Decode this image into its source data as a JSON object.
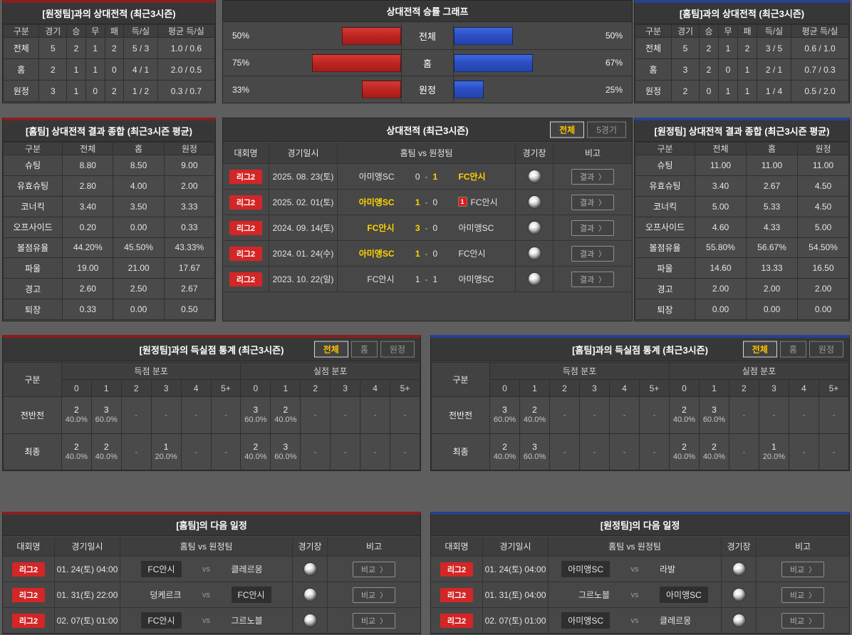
{
  "colors": {
    "accent_red": "#8a1e1e",
    "accent_blue": "#27418f",
    "bar_red": "#c02622",
    "bar_blue": "#2c50c4",
    "highlight_yellow": "#ffd400",
    "badge_red": "#d32626"
  },
  "away_h2h": {
    "title": "[원정팀]과의 상대전적 (최근3시즌)",
    "headers": [
      "구분",
      "경기",
      "승",
      "무",
      "패",
      "득/실",
      "평균 득/실"
    ],
    "rows": [
      [
        "전체",
        "5",
        "2",
        "1",
        "2",
        "5 / 3",
        "1.0 / 0.6"
      ],
      [
        "홈",
        "2",
        "1",
        "1",
        "0",
        "4 / 1",
        "2.0 / 0.5"
      ],
      [
        "원정",
        "3",
        "1",
        "0",
        "2",
        "1 / 2",
        "0.3 / 0.7"
      ]
    ]
  },
  "home_h2h": {
    "title": "[홈팀]과의 상대전적 (최근3시즌)",
    "headers": [
      "구분",
      "경기",
      "승",
      "무",
      "패",
      "득/실",
      "평균 득/실"
    ],
    "rows": [
      [
        "전체",
        "5",
        "2",
        "1",
        "2",
        "3 / 5",
        "0.6 / 1.0"
      ],
      [
        "홈",
        "3",
        "2",
        "0",
        "1",
        "2 / 1",
        "0.7 / 0.3"
      ],
      [
        "원정",
        "2",
        "0",
        "1",
        "1",
        "1 / 4",
        "0.5 / 2.0"
      ]
    ]
  },
  "chart_data": {
    "type": "bar",
    "title": "상대전적 승률 그래프",
    "categories": [
      "전체",
      "홈",
      "원정"
    ],
    "series": [
      {
        "name": "홈팀 승률(적색/좌측)",
        "values": [
          50,
          75,
          33
        ],
        "labels": [
          "50%",
          "75%",
          "33%"
        ],
        "color": "#c02622"
      },
      {
        "name": "원정팀 승률(청색/우측)",
        "values": [
          50,
          67,
          25
        ],
        "labels": [
          "50%",
          "67%",
          "25%"
        ],
        "color": "#2c50c4"
      }
    ],
    "xlim": [
      0,
      100
    ],
    "legend": "none",
    "grid": "off"
  },
  "home_summary": {
    "title": "[홈팀] 상대전적 결과 종합 (최근3시즌 평균)",
    "headers": [
      "구분",
      "전체",
      "홈",
      "원정"
    ],
    "rows": [
      [
        "슈팅",
        "8.80",
        "8.50",
        "9.00"
      ],
      [
        "유효슈팅",
        "2.80",
        "4.00",
        "2.00"
      ],
      [
        "코너킥",
        "3.40",
        "3.50",
        "3.33"
      ],
      [
        "오프사이드",
        "0.20",
        "0.00",
        "0.33"
      ],
      [
        "볼점유율",
        "44.20%",
        "45.50%",
        "43.33%"
      ],
      [
        "파울",
        "19.00",
        "21.00",
        "17.67"
      ],
      [
        "경고",
        "2.60",
        "2.50",
        "2.67"
      ],
      [
        "퇴장",
        "0.33",
        "0.00",
        "0.50"
      ]
    ]
  },
  "away_summary": {
    "title": "[원정팀] 상대전적 결과 종합 (최근3시즌 평균)",
    "headers": [
      "구분",
      "전체",
      "홈",
      "원정"
    ],
    "rows": [
      [
        "슈팅",
        "11.00",
        "11.00",
        "11.00"
      ],
      [
        "유효슈팅",
        "3.40",
        "2.67",
        "4.50"
      ],
      [
        "코너킥",
        "5.00",
        "5.33",
        "4.50"
      ],
      [
        "오프사이드",
        "4.60",
        "4.33",
        "5.00"
      ],
      [
        "볼점유율",
        "55.80%",
        "56.67%",
        "54.50%"
      ],
      [
        "파울",
        "14.60",
        "13.33",
        "16.50"
      ],
      [
        "경고",
        "2.00",
        "2.00",
        "2.00"
      ],
      [
        "퇴장",
        "0.00",
        "0.00",
        "0.00"
      ]
    ]
  },
  "h2h_matches": {
    "title": "상대전적 (최근3시즌)",
    "toggles": [
      "전체",
      "5경기"
    ],
    "active_toggle": 0,
    "headers": [
      "대회명",
      "경기일시",
      "홈팀  vs  원정팀",
      "경기장",
      "비고"
    ],
    "button_label": "결과",
    "chevron": "〉",
    "rows": [
      {
        "league": "리그2",
        "date": "2025. 08. 23(토)",
        "home": "아미앵SC",
        "hs": "0",
        "as": "1",
        "away": "FC안시",
        "win": "away"
      },
      {
        "league": "리그2",
        "date": "2025. 02. 01(토)",
        "home": "아미앵SC",
        "hs": "1",
        "as": "0",
        "away": "FC안시",
        "win": "home",
        "away_card": "1"
      },
      {
        "league": "리그2",
        "date": "2024. 09. 14(토)",
        "home": "FC안시",
        "hs": "3",
        "as": "0",
        "away": "아미앵SC",
        "win": "home"
      },
      {
        "league": "리그2",
        "date": "2024. 01. 24(수)",
        "home": "아미앵SC",
        "hs": "1",
        "as": "0",
        "away": "FC안시",
        "win": "home"
      },
      {
        "league": "리그2",
        "date": "2023. 10. 22(일)",
        "home": "FC안시",
        "hs": "1",
        "as": "1",
        "away": "아미앵SC",
        "win": "draw"
      }
    ]
  },
  "goals_vs_away": {
    "title": "[원정팀]과의 득실점 통계 (최근3시즌)",
    "toggles": [
      "전체",
      "홈",
      "원정"
    ],
    "active_toggle": 0,
    "corner_header": "구분",
    "groups": [
      "득점 분포",
      "실점 분포"
    ],
    "bins": [
      "0",
      "1",
      "2",
      "3",
      "4",
      "5+"
    ],
    "empty": "-",
    "rows": [
      {
        "label": "전반전",
        "score": [
          [
            "2",
            "40.0%"
          ],
          [
            "3",
            "60.0%"
          ],
          null,
          null,
          null,
          null
        ],
        "concede": [
          [
            "3",
            "60.0%"
          ],
          [
            "2",
            "40.0%"
          ],
          null,
          null,
          null,
          null
        ]
      },
      {
        "label": "최종",
        "score": [
          [
            "2",
            "40.0%"
          ],
          [
            "2",
            "40.0%"
          ],
          null,
          [
            "1",
            "20.0%"
          ],
          null,
          null
        ],
        "concede": [
          [
            "2",
            "40.0%"
          ],
          [
            "3",
            "60.0%"
          ],
          null,
          null,
          null,
          null
        ]
      }
    ]
  },
  "goals_vs_home": {
    "title": "[홈팀]과의 득실점 통계 (최근3시즌)",
    "toggles": [
      "전체",
      "홈",
      "원정"
    ],
    "active_toggle": 0,
    "corner_header": "구분",
    "groups": [
      "득점 분포",
      "실점 분포"
    ],
    "bins": [
      "0",
      "1",
      "2",
      "3",
      "4",
      "5+"
    ],
    "empty": "-",
    "rows": [
      {
        "label": "전반전",
        "score": [
          [
            "3",
            "60.0%"
          ],
          [
            "2",
            "40.0%"
          ],
          null,
          null,
          null,
          null
        ],
        "concede": [
          [
            "2",
            "40.0%"
          ],
          [
            "3",
            "60.0%"
          ],
          null,
          null,
          null,
          null
        ]
      },
      {
        "label": "최종",
        "score": [
          [
            "2",
            "40.0%"
          ],
          [
            "3",
            "60.0%"
          ],
          null,
          null,
          null,
          null
        ],
        "concede": [
          [
            "2",
            "40.0%"
          ],
          [
            "2",
            "40.0%"
          ],
          null,
          [
            "1",
            "20.0%"
          ],
          null,
          null
        ]
      }
    ]
  },
  "home_schedule": {
    "title": "[홈팀]의 다음 일정",
    "headers": [
      "대회명",
      "경기일시",
      "홈팀  vs  원정팀",
      "경기장",
      "비고"
    ],
    "button_label": "비교",
    "chevron": "〉",
    "vs_label": "vs",
    "rows": [
      {
        "league": "리그2",
        "dt": "01. 24(토) 04:00",
        "home": "FC안시",
        "away": "클레르몽",
        "hl": "home"
      },
      {
        "league": "리그2",
        "dt": "01. 31(토) 22:00",
        "home": "덩케르크",
        "away": "FC안시",
        "hl": "away"
      },
      {
        "league": "리그2",
        "dt": "02. 07(토) 01:00",
        "home": "FC안시",
        "away": "그르노블",
        "hl": "home"
      }
    ]
  },
  "away_schedule": {
    "title": "[원정팀]의 다음 일정",
    "headers": [
      "대회명",
      "경기일시",
      "홈팀  vs  원정팀",
      "경기장",
      "비고"
    ],
    "button_label": "비교",
    "chevron": "〉",
    "vs_label": "vs",
    "rows": [
      {
        "league": "리그2",
        "dt": "01. 24(토) 04:00",
        "home": "아미앵SC",
        "away": "라발",
        "hl": "home"
      },
      {
        "league": "리그2",
        "dt": "01. 31(토) 04:00",
        "home": "그르노블",
        "away": "아미앵SC",
        "hl": "away"
      },
      {
        "league": "리그2",
        "dt": "02. 07(토) 01:00",
        "home": "아미앵SC",
        "away": "클레르몽",
        "hl": "home"
      }
    ]
  }
}
